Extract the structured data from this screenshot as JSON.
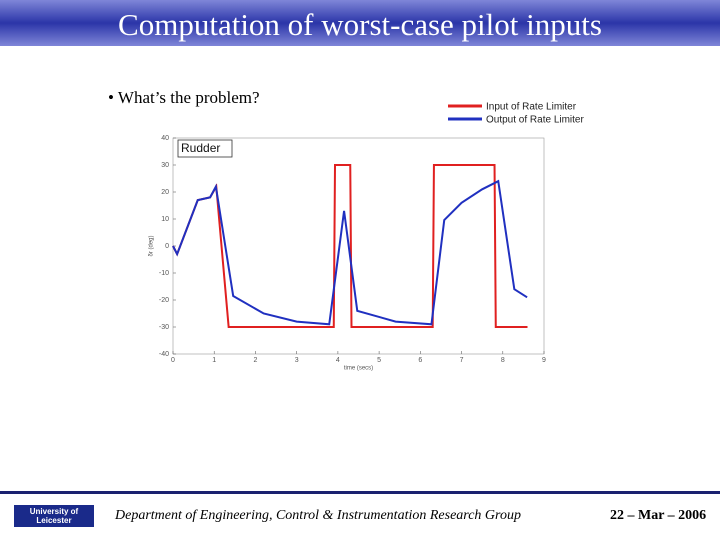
{
  "header": {
    "title": "Computation of worst-case pilot inputs"
  },
  "bullet": "• What’s the problem?",
  "footer": {
    "logo": "University of Leicester",
    "department": "Department of Engineering, Control & Instrumentation Research Group",
    "date": "22 – Mar – 2006"
  },
  "chart_data": {
    "type": "line",
    "annotation": "Rudder",
    "x_label": "time (secs)",
    "y_label": "δr (deg)",
    "xlim": [
      0,
      9
    ],
    "xticks": [
      0,
      1,
      2,
      3,
      4,
      5,
      6,
      7,
      8,
      9
    ],
    "ylim": [
      -40,
      40
    ],
    "yticks": [
      -40,
      -30,
      -20,
      -10,
      0,
      10,
      20,
      30,
      40
    ],
    "legend": "top-right",
    "series": [
      {
        "name": "Input of Rate Limiter",
        "color": "#e02020",
        "x": [
          0,
          0.1,
          0.6,
          0.9,
          1.05,
          1.35,
          3.9,
          3.93,
          4.3,
          4.33,
          6.3,
          6.33,
          7.8,
          7.83,
          8.6
        ],
        "values": [
          0,
          -3,
          17,
          18,
          22,
          -30,
          -30,
          30,
          30,
          -30,
          -30,
          30,
          30,
          -30,
          -30
        ]
      },
      {
        "name": "Output of Rate Limiter",
        "color": "#2030c0",
        "x": [
          0,
          0.1,
          0.6,
          0.9,
          1.04,
          1.46,
          2.2,
          3.0,
          3.79,
          4.15,
          4.47,
          5.4,
          6.27,
          6.58,
          7.0,
          7.5,
          7.89,
          8.28,
          8.59
        ],
        "values": [
          0,
          -3,
          17,
          18,
          22,
          -18.5,
          -25,
          -28,
          -29,
          13,
          -24,
          -28,
          -29,
          9.6,
          16,
          21,
          24,
          -16,
          -19
        ]
      }
    ]
  }
}
